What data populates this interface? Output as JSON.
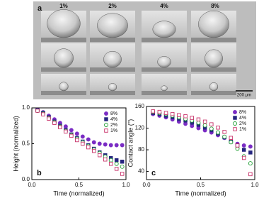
{
  "panel_a": {
    "label": "a",
    "columns": [
      "1%",
      "2%",
      "4%",
      "8%"
    ],
    "scale_bar": "200 μm"
  },
  "chart_data": [
    {
      "type": "scatter",
      "panel": "b",
      "xlabel": "Time (normalized)",
      "ylabel": "Height (normalized)",
      "x": [
        0.06,
        0.12,
        0.18,
        0.24,
        0.3,
        0.36,
        0.42,
        0.48,
        0.54,
        0.6,
        0.66,
        0.72,
        0.78,
        0.84,
        0.9,
        0.96
      ],
      "xlim": [
        0,
        1
      ],
      "xticks": [
        {
          "value": 0,
          "label": "0.0"
        },
        0.5,
        {
          "value": 1,
          "label": "1.0"
        }
      ],
      "ylim": [
        0,
        1
      ],
      "yticks": [
        {
          "value": 0,
          "label": "0.0"
        },
        0.5,
        {
          "value": 1,
          "label": "1.0"
        }
      ],
      "legend": "upper right",
      "series": [
        {
          "name": "8%",
          "color": "#7a2cc4",
          "marker": "circle",
          "filled": true,
          "values": [
            0.97,
            0.94,
            0.89,
            0.84,
            0.79,
            0.74,
            0.69,
            0.64,
            0.6,
            0.56,
            0.52,
            0.5,
            0.49,
            0.48,
            0.48,
            0.48
          ]
        },
        {
          "name": "4%",
          "color": "#262680",
          "marker": "square",
          "filled": true,
          "values": [
            0.97,
            0.93,
            0.87,
            0.81,
            0.75,
            0.69,
            0.63,
            0.58,
            0.53,
            0.48,
            0.43,
            0.38,
            0.34,
            0.3,
            0.27,
            0.25
          ]
        },
        {
          "name": "2%",
          "color": "#1f9e33",
          "marker": "circle",
          "filled": false,
          "values": [
            0.96,
            0.92,
            0.86,
            0.8,
            0.74,
            0.68,
            0.62,
            0.57,
            0.52,
            0.47,
            0.42,
            0.37,
            0.32,
            0.27,
            0.22,
            0.18
          ]
        },
        {
          "name": "1%",
          "color": "#c8326a",
          "marker": "square",
          "filled": false,
          "values": [
            0.96,
            0.91,
            0.85,
            0.79,
            0.73,
            0.67,
            0.61,
            0.55,
            0.5,
            0.45,
            0.4,
            0.34,
            0.28,
            0.22,
            0.15,
            0.08
          ]
        }
      ]
    },
    {
      "type": "scatter",
      "panel": "c",
      "xlabel": "Time (normalized)",
      "ylabel": "Contact angle (°)",
      "x": [
        0.06,
        0.12,
        0.18,
        0.24,
        0.3,
        0.36,
        0.42,
        0.48,
        0.54,
        0.6,
        0.66,
        0.72,
        0.78,
        0.84,
        0.9,
        0.96
      ],
      "xlim": [
        0,
        1
      ],
      "xticks": [
        {
          "value": 0,
          "label": "0.0"
        },
        0.5,
        {
          "value": 1,
          "label": "1.0"
        }
      ],
      "ylim": [
        25,
        160
      ],
      "yticks": [
        40,
        80,
        120,
        160
      ],
      "legend": "upper right",
      "series": [
        {
          "name": "8%",
          "color": "#7a2cc4",
          "marker": "circle",
          "filled": true,
          "values": [
            146,
            143,
            140,
            136,
            132,
            128,
            124,
            120,
            116,
            112,
            107,
            102,
            96,
            91,
            88,
            86
          ]
        },
        {
          "name": "4%",
          "color": "#262680",
          "marker": "square",
          "filled": true,
          "values": [
            148,
            146,
            143,
            140,
            137,
            134,
            130,
            126,
            121,
            116,
            110,
            103,
            95,
            88,
            80,
            75
          ]
        },
        {
          "name": "2%",
          "color": "#1f9e33",
          "marker": "circle",
          "filled": false,
          "values": [
            150,
            148,
            146,
            143,
            140,
            137,
            134,
            130,
            125,
            119,
            112,
            104,
            94,
            82,
            68,
            55
          ]
        },
        {
          "name": "1%",
          "color": "#c8326a",
          "marker": "square",
          "filled": false,
          "values": [
            151,
            150,
            148,
            146,
            144,
            142,
            139,
            136,
            132,
            127,
            121,
            113,
            102,
            88,
            65,
            35
          ]
        }
      ]
    }
  ]
}
